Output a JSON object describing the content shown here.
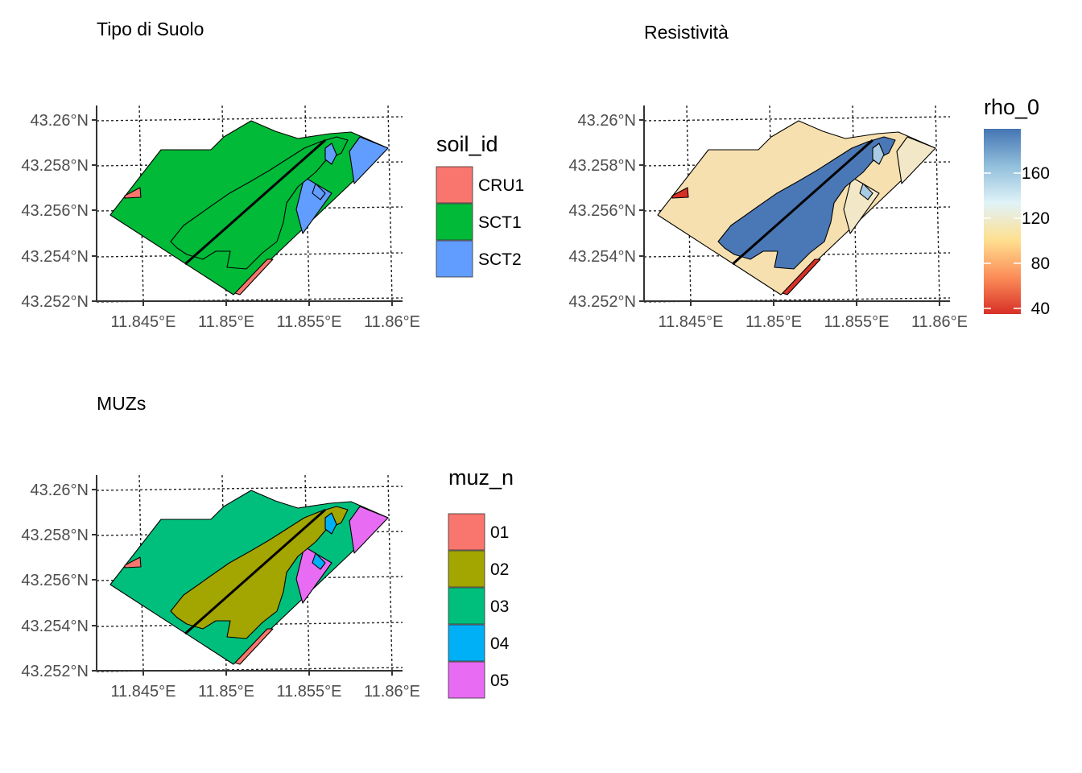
{
  "panels": [
    {
      "id": "soil",
      "title": "Tipo di Suolo",
      "y_ticks": [
        "43.26°N",
        "43.258°N",
        "43.256°N",
        "43.254°N",
        "43.252°N"
      ],
      "x_ticks": [
        "11.845°E",
        "11.85°E",
        "11.855°E",
        "11.86°E"
      ],
      "legend": {
        "title": "soil_id",
        "type": "categorical",
        "items": [
          {
            "label": "CRU1",
            "color": "#F8766D"
          },
          {
            "label": "SCT1",
            "color": "#00BA38"
          },
          {
            "label": "SCT2",
            "color": "#619CFF"
          }
        ]
      },
      "base_color": "#00BA38",
      "accent_colors": {
        "east": "#619CFF",
        "corner": "#F8766D",
        "blob": "#00BA38",
        "pocket": "#619CFF"
      }
    },
    {
      "id": "resistivity",
      "title": "Resistività",
      "y_ticks": [
        "43.26°N",
        "43.258°N",
        "43.256°N",
        "43.254°N",
        "43.252°N"
      ],
      "x_ticks": [
        "11.845°E",
        "11.85°E",
        "11.855°E",
        "11.86°E"
      ],
      "legend": {
        "title": "rho_0",
        "type": "continuous",
        "breaks": [
          "160",
          "120",
          "80",
          "40"
        ],
        "gradient": [
          "#4575B4",
          "#91BFDB",
          "#E0F3F8",
          "#FEE090",
          "#FC8D59",
          "#D73027"
        ]
      },
      "base_color": "#F7E0B0",
      "accent_colors": {
        "east": "#F2E8C8",
        "corner": "#D73027",
        "blob": "#4A78B6",
        "pocket": "#A9CBE3"
      }
    },
    {
      "id": "muz",
      "title": "MUZs",
      "y_ticks": [
        "43.26°N",
        "43.258°N",
        "43.256°N",
        "43.254°N",
        "43.252°N"
      ],
      "x_ticks": [
        "11.845°E",
        "11.85°E",
        "11.855°E",
        "11.86°E"
      ],
      "legend": {
        "title": "muz_n",
        "type": "categorical",
        "items": [
          {
            "label": "01",
            "color": "#F8766D"
          },
          {
            "label": "02",
            "color": "#A3A500"
          },
          {
            "label": "03",
            "color": "#00BF7D"
          },
          {
            "label": "04",
            "color": "#00B0F6"
          },
          {
            "label": "05",
            "color": "#E76BF3"
          }
        ]
      },
      "base_color": "#00BF7D",
      "accent_colors": {
        "east": "#E76BF3",
        "corner": "#F8766D",
        "blob": "#A3A500",
        "pocket": "#00B0F6"
      }
    }
  ]
}
